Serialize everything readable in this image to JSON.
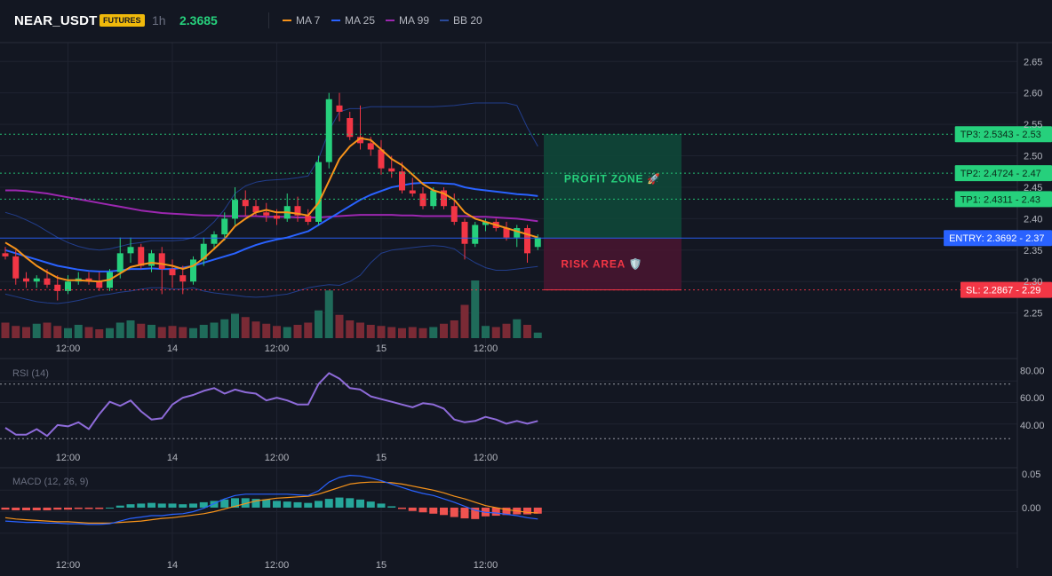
{
  "header": {
    "symbol": "NEAR_USDT",
    "badge": "FUTURES",
    "timeframe": "1h",
    "price": "2.3685",
    "legend": [
      {
        "label": "MA 7",
        "color": "#f7931a"
      },
      {
        "label": "MA 25",
        "color": "#2962ff"
      },
      {
        "label": "MA 99",
        "color": "#9c27b0"
      },
      {
        "label": "BB 20",
        "color": "#1e3a8a"
      }
    ]
  },
  "zones": {
    "profit_label": "PROFIT ZONE 🚀",
    "risk_label": "RISK AREA 🛡️"
  },
  "levels": [
    {
      "label": "TP3: 2.5343",
      "axis": "2.53",
      "value": 2.5343,
      "color": "#26d07c",
      "kind": "tp"
    },
    {
      "label": "TP2: 2.4724",
      "axis": "2.47",
      "value": 2.4724,
      "color": "#26d07c",
      "kind": "tp"
    },
    {
      "label": "TP1: 2.4311",
      "axis": "2.43",
      "value": 2.4311,
      "color": "#26d07c",
      "kind": "tp"
    },
    {
      "label": "ENTRY: 2.3692",
      "axis": "2.37",
      "value": 2.3692,
      "color": "#2962ff",
      "kind": "entry"
    },
    {
      "label": "SL: 2.2867",
      "axis": "2.29",
      "value": 2.2867,
      "color": "#f23645",
      "kind": "sl"
    }
  ],
  "rsi_label": "RSI (14)",
  "macd_label": "MACD (12, 26, 9)",
  "colors": {
    "up": "#26d07c",
    "down": "#f23645",
    "bg": "#131722",
    "grid": "#1f2330",
    "text": "#b2b5be"
  },
  "chart_data": [
    {
      "type": "candlestick",
      "x_ticks": [
        "12:00",
        "14",
        "12:00",
        "15",
        "12:00"
      ],
      "x_tick_index": [
        6,
        16,
        26,
        36,
        46
      ],
      "ylim": [
        2.21,
        2.68
      ],
      "y_ticks": [
        "2.25",
        "2.30",
        "2.35",
        "2.40",
        "2.45",
        "2.50",
        "2.55",
        "2.60",
        "2.65"
      ],
      "y_tick_values": [
        2.25,
        2.3,
        2.35,
        2.4,
        2.45,
        2.5,
        2.55,
        2.6,
        2.65
      ],
      "candles": [
        {
          "o": 2.345,
          "h": 2.355,
          "l": 2.335,
          "c": 2.34
        },
        {
          "o": 2.34,
          "h": 2.35,
          "l": 2.295,
          "c": 2.305
        },
        {
          "o": 2.305,
          "h": 2.315,
          "l": 2.29,
          "c": 2.3
        },
        {
          "o": 2.3,
          "h": 2.31,
          "l": 2.29,
          "c": 2.305
        },
        {
          "o": 2.305,
          "h": 2.32,
          "l": 2.29,
          "c": 2.295
        },
        {
          "o": 2.295,
          "h": 2.31,
          "l": 2.27,
          "c": 2.285
        },
        {
          "o": 2.285,
          "h": 2.31,
          "l": 2.28,
          "c": 2.3
        },
        {
          "o": 2.3,
          "h": 2.315,
          "l": 2.295,
          "c": 2.305
        },
        {
          "o": 2.305,
          "h": 2.315,
          "l": 2.295,
          "c": 2.3
        },
        {
          "o": 2.3,
          "h": 2.315,
          "l": 2.285,
          "c": 2.29
        },
        {
          "o": 2.29,
          "h": 2.32,
          "l": 2.285,
          "c": 2.315
        },
        {
          "o": 2.315,
          "h": 2.37,
          "l": 2.305,
          "c": 2.345
        },
        {
          "o": 2.345,
          "h": 2.37,
          "l": 2.33,
          "c": 2.355
        },
        {
          "o": 2.355,
          "h": 2.36,
          "l": 2.32,
          "c": 2.325
        },
        {
          "o": 2.325,
          "h": 2.35,
          "l": 2.315,
          "c": 2.345
        },
        {
          "o": 2.345,
          "h": 2.355,
          "l": 2.28,
          "c": 2.32
        },
        {
          "o": 2.32,
          "h": 2.335,
          "l": 2.29,
          "c": 2.31
        },
        {
          "o": 2.31,
          "h": 2.325,
          "l": 2.28,
          "c": 2.3
        },
        {
          "o": 2.3,
          "h": 2.34,
          "l": 2.295,
          "c": 2.335
        },
        {
          "o": 2.335,
          "h": 2.37,
          "l": 2.325,
          "c": 2.36
        },
        {
          "o": 2.36,
          "h": 2.38,
          "l": 2.35,
          "c": 2.375
        },
        {
          "o": 2.375,
          "h": 2.41,
          "l": 2.365,
          "c": 2.4
        },
        {
          "o": 2.4,
          "h": 2.45,
          "l": 2.39,
          "c": 2.43
        },
        {
          "o": 2.43,
          "h": 2.445,
          "l": 2.405,
          "c": 2.42
        },
        {
          "o": 2.42,
          "h": 2.43,
          "l": 2.405,
          "c": 2.41
        },
        {
          "o": 2.41,
          "h": 2.425,
          "l": 2.395,
          "c": 2.405
        },
        {
          "o": 2.405,
          "h": 2.415,
          "l": 2.39,
          "c": 2.4
        },
        {
          "o": 2.4,
          "h": 2.44,
          "l": 2.395,
          "c": 2.42
        },
        {
          "o": 2.42,
          "h": 2.435,
          "l": 2.395,
          "c": 2.405
        },
        {
          "o": 2.405,
          "h": 2.415,
          "l": 2.39,
          "c": 2.395
        },
        {
          "o": 2.395,
          "h": 2.5,
          "l": 2.39,
          "c": 2.49
        },
        {
          "o": 2.49,
          "h": 2.6,
          "l": 2.48,
          "c": 2.59
        },
        {
          "o": 2.58,
          "h": 2.6,
          "l": 2.555,
          "c": 2.57
        },
        {
          "o": 2.56,
          "h": 2.57,
          "l": 2.525,
          "c": 2.53
        },
        {
          "o": 2.53,
          "h": 2.58,
          "l": 2.51,
          "c": 2.52
        },
        {
          "o": 2.52,
          "h": 2.53,
          "l": 2.5,
          "c": 2.51
        },
        {
          "o": 2.51,
          "h": 2.525,
          "l": 2.47,
          "c": 2.48
        },
        {
          "o": 2.48,
          "h": 2.5,
          "l": 2.465,
          "c": 2.475
        },
        {
          "o": 2.475,
          "h": 2.49,
          "l": 2.44,
          "c": 2.445
        },
        {
          "o": 2.445,
          "h": 2.465,
          "l": 2.435,
          "c": 2.44
        },
        {
          "o": 2.44,
          "h": 2.45,
          "l": 2.415,
          "c": 2.42
        },
        {
          "o": 2.42,
          "h": 2.45,
          "l": 2.415,
          "c": 2.445
        },
        {
          "o": 2.445,
          "h": 2.45,
          "l": 2.415,
          "c": 2.42
        },
        {
          "o": 2.42,
          "h": 2.44,
          "l": 2.39,
          "c": 2.395
        },
        {
          "o": 2.395,
          "h": 2.4,
          "l": 2.335,
          "c": 2.36
        },
        {
          "o": 2.36,
          "h": 2.395,
          "l": 2.355,
          "c": 2.39
        },
        {
          "o": 2.39,
          "h": 2.4,
          "l": 2.38,
          "c": 2.395
        },
        {
          "o": 2.395,
          "h": 2.4,
          "l": 2.38,
          "c": 2.385
        },
        {
          "o": 2.385,
          "h": 2.395,
          "l": 2.365,
          "c": 2.37
        },
        {
          "o": 2.37,
          "h": 2.39,
          "l": 2.355,
          "c": 2.385
        },
        {
          "o": 2.385,
          "h": 2.39,
          "l": 2.33,
          "c": 2.345
        },
        {
          "o": 2.355,
          "h": 2.375,
          "l": 2.35,
          "c": 2.37
        }
      ],
      "volume": [
        14,
        11,
        10,
        13,
        14,
        11,
        9,
        12,
        10,
        8,
        9,
        14,
        16,
        13,
        12,
        10,
        11,
        10,
        9,
        12,
        14,
        17,
        22,
        19,
        15,
        13,
        11,
        10,
        12,
        14,
        25,
        43,
        21,
        16,
        14,
        12,
        11,
        10,
        9,
        10,
        9,
        10,
        13,
        16,
        30,
        52,
        11,
        10,
        13,
        17,
        12,
        5
      ],
      "ma7": [
        2.362,
        2.352,
        2.338,
        2.325,
        2.315,
        2.306,
        2.302,
        2.302,
        2.301,
        2.3,
        2.303,
        2.313,
        2.323,
        2.327,
        2.33,
        2.328,
        2.325,
        2.32,
        2.325,
        2.337,
        2.352,
        2.368,
        2.388,
        2.4,
        2.41,
        2.414,
        2.41,
        2.41,
        2.408,
        2.405,
        2.425,
        2.46,
        2.495,
        2.515,
        2.528,
        2.525,
        2.51,
        2.495,
        2.485,
        2.47,
        2.455,
        2.445,
        2.44,
        2.43,
        2.41,
        2.4,
        2.395,
        2.39,
        2.385,
        2.38,
        2.375,
        2.37
      ],
      "ma25": [
        2.35,
        2.345,
        2.34,
        2.335,
        2.33,
        2.325,
        2.322,
        2.319,
        2.317,
        2.316,
        2.316,
        2.318,
        2.32,
        2.32,
        2.321,
        2.32,
        2.32,
        2.322,
        2.325,
        2.33,
        2.335,
        2.34,
        2.345,
        2.352,
        2.358,
        2.363,
        2.367,
        2.37,
        2.375,
        2.38,
        2.39,
        2.4,
        2.41,
        2.42,
        2.43,
        2.438,
        2.444,
        2.45,
        2.453,
        2.456,
        2.457,
        2.457,
        2.456,
        2.455,
        2.45,
        2.447,
        2.445,
        2.443,
        2.441,
        2.439,
        2.438,
        2.436
      ],
      "ma99": [
        2.445,
        2.445,
        2.444,
        2.442,
        2.44,
        2.437,
        2.434,
        2.431,
        2.428,
        2.425,
        2.422,
        2.419,
        2.416,
        2.413,
        2.411,
        2.409,
        2.408,
        2.407,
        2.406,
        2.405,
        2.405,
        2.404,
        2.404,
        2.404,
        2.404,
        2.403,
        2.403,
        2.403,
        2.402,
        2.402,
        2.402,
        2.403,
        2.404,
        2.405,
        2.406,
        2.406,
        2.406,
        2.406,
        2.405,
        2.405,
        2.404,
        2.404,
        2.404,
        2.404,
        2.404,
        2.403,
        2.403,
        2.402,
        2.401,
        2.4,
        2.398,
        2.396
      ],
      "bb_upper": [
        2.41,
        2.405,
        2.398,
        2.39,
        2.38,
        2.37,
        2.362,
        2.356,
        2.352,
        2.35,
        2.352,
        2.356,
        2.36,
        2.362,
        2.365,
        2.365,
        2.365,
        2.366,
        2.37,
        2.38,
        2.395,
        2.415,
        2.44,
        2.452,
        2.458,
        2.461,
        2.462,
        2.463,
        2.465,
        2.468,
        2.495,
        2.54,
        2.57,
        2.575,
        2.575,
        2.578,
        2.578,
        2.578,
        2.578,
        2.578,
        2.578,
        2.578,
        2.579,
        2.58,
        2.582,
        2.584,
        2.584,
        2.584,
        2.584,
        2.58,
        2.545,
        2.515
      ],
      "bb_lower": [
        2.28,
        2.276,
        2.272,
        2.268,
        2.266,
        2.265,
        2.267,
        2.27,
        2.274,
        2.278,
        2.28,
        2.283,
        2.285,
        2.288,
        2.29,
        2.29,
        2.288,
        2.288,
        2.29,
        2.285,
        2.282,
        2.28,
        2.278,
        2.276,
        2.275,
        2.276,
        2.278,
        2.28,
        2.285,
        2.29,
        2.293,
        2.295,
        2.294,
        2.3,
        2.31,
        2.33,
        2.345,
        2.35,
        2.352,
        2.354,
        2.356,
        2.357,
        2.356,
        2.352,
        2.34,
        2.33,
        2.322,
        2.318,
        2.318,
        2.32,
        2.322,
        2.324
      ]
    },
    {
      "type": "line",
      "name": "RSI (14)",
      "ylim": [
        25,
        88
      ],
      "y_ticks": [
        "80.00",
        "60.00",
        "40.00"
      ],
      "y_tick_values": [
        80,
        60,
        40
      ],
      "bands": [
        70,
        30
      ],
      "values": [
        38,
        33,
        33,
        37,
        32,
        40,
        39,
        42,
        37,
        48,
        57,
        54,
        58,
        50,
        44,
        45,
        55,
        60,
        62,
        65,
        67,
        63,
        66,
        64,
        63,
        58,
        60,
        58,
        55,
        55,
        70,
        78,
        74,
        67,
        66,
        61,
        59,
        57,
        55,
        53,
        56,
        55,
        52,
        44,
        42,
        43,
        46,
        44,
        41,
        43,
        41,
        43
      ]
    },
    {
      "type": "line",
      "name": "MACD (12, 26, 9)",
      "ylim": [
        -0.07,
        0.058
      ],
      "y_ticks": [
        "0.05",
        "0.00"
      ],
      "y_tick_values": [
        0.05,
        0.0
      ],
      "macd": [
        -0.02,
        -0.021,
        -0.022,
        -0.022,
        -0.023,
        -0.023,
        -0.024,
        -0.024,
        -0.025,
        -0.025,
        -0.024,
        -0.02,
        -0.016,
        -0.014,
        -0.012,
        -0.012,
        -0.01,
        -0.009,
        -0.006,
        -0.001,
        0.006,
        0.013,
        0.018,
        0.02,
        0.02,
        0.02,
        0.02,
        0.02,
        0.019,
        0.018,
        0.025,
        0.038,
        0.045,
        0.048,
        0.047,
        0.044,
        0.04,
        0.035,
        0.03,
        0.025,
        0.021,
        0.018,
        0.013,
        0.008,
        0.002,
        -0.004,
        -0.007,
        -0.008,
        -0.01,
        -0.012,
        -0.015,
        -0.017
      ],
      "signal": [
        -0.015,
        -0.017,
        -0.018,
        -0.019,
        -0.02,
        -0.021,
        -0.021,
        -0.022,
        -0.023,
        -0.023,
        -0.023,
        -0.022,
        -0.021,
        -0.02,
        -0.018,
        -0.016,
        -0.015,
        -0.013,
        -0.011,
        -0.009,
        -0.006,
        -0.002,
        0.002,
        0.006,
        0.01,
        0.012,
        0.014,
        0.015,
        0.016,
        0.017,
        0.02,
        0.025,
        0.03,
        0.035,
        0.037,
        0.038,
        0.038,
        0.037,
        0.035,
        0.032,
        0.029,
        0.026,
        0.022,
        0.017,
        0.013,
        0.008,
        0.003,
        0.0,
        -0.003,
        -0.005,
        -0.007,
        -0.008
      ],
      "histogram": [
        -0.003,
        -0.004,
        -0.004,
        -0.004,
        -0.004,
        -0.003,
        -0.003,
        -0.002,
        -0.002,
        -0.002,
        0.0,
        0.003,
        0.005,
        0.006,
        0.007,
        0.006,
        0.006,
        0.005,
        0.006,
        0.008,
        0.01,
        0.012,
        0.014,
        0.014,
        0.013,
        0.012,
        0.01,
        0.009,
        0.008,
        0.007,
        0.01,
        0.013,
        0.015,
        0.014,
        0.012,
        0.009,
        0.006,
        0.002,
        -0.002,
        -0.005,
        -0.007,
        -0.009,
        -0.011,
        -0.014,
        -0.016,
        -0.017,
        -0.013,
        -0.012,
        -0.011,
        -0.01,
        -0.01,
        -0.009
      ]
    }
  ]
}
